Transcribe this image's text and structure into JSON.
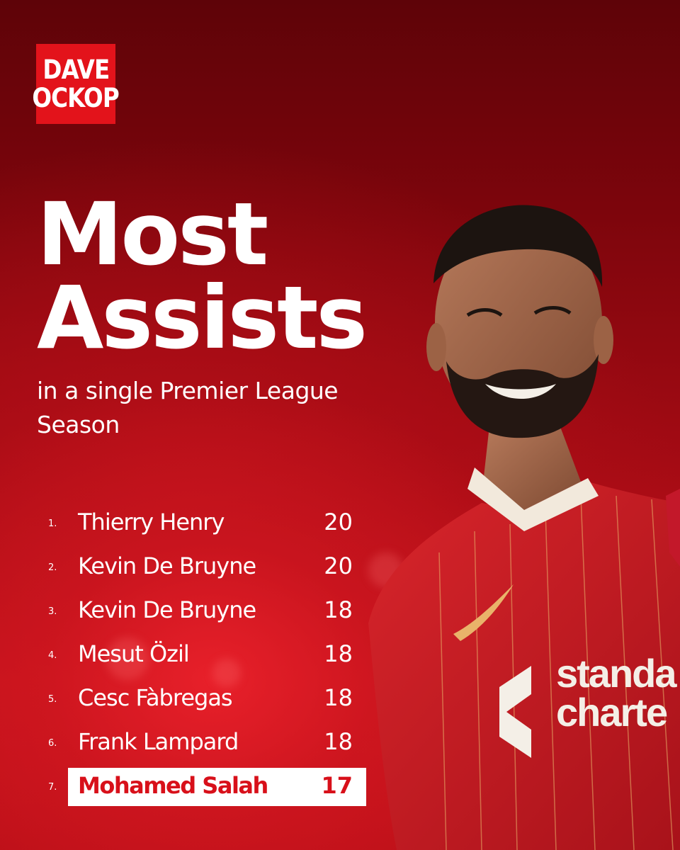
{
  "brand": {
    "line1": "DAVE",
    "line2": "OCKOP"
  },
  "headline": {
    "line1": "Most",
    "line2": "Assists"
  },
  "subtitle": "in a single Premier League Season",
  "ranking": [
    {
      "rank": "1.",
      "name": "Thierry Henry",
      "value": "20"
    },
    {
      "rank": "2.",
      "name": "Kevin De Bruyne",
      "value": "20"
    },
    {
      "rank": "3.",
      "name": "Kevin De Bruyne",
      "value": "18"
    },
    {
      "rank": "4.",
      "name": "Mesut Özil",
      "value": "18"
    },
    {
      "rank": "5.",
      "name": "Cesc Fàbregas",
      "value": "18"
    },
    {
      "rank": "6.",
      "name": "Frank Lampard",
      "value": "18"
    },
    {
      "rank": "7.",
      "name": "Mohamed Salah",
      "value": "17",
      "highlight": true
    }
  ],
  "shirt_sponsor": {
    "line1": "standa",
    "line2": "charte"
  },
  "colors": {
    "brand_red": "#e3131b",
    "highlight_text": "#d8101a",
    "background_dark": "#5e0308"
  }
}
